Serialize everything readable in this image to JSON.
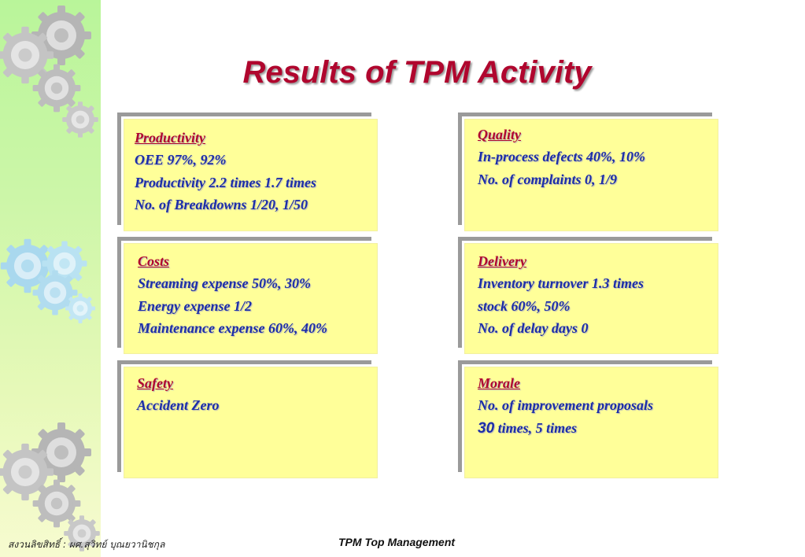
{
  "title": "Results of TPM Activity",
  "cards": {
    "productivity": {
      "heading": "Productivity",
      "lines": [
        "OEE 97%, 92%",
        "Productivity 2.2 times 1.7 times",
        "No. of Breakdowns 1/20, 1/50"
      ]
    },
    "quality": {
      "heading": "Quality",
      "lines": [
        "In-process defects 40%, 10%",
        "No. of complaints 0, 1/9"
      ]
    },
    "costs": {
      "heading": "Costs",
      "lines": [
        "Streaming expense 50%, 30%",
        "Energy expense 1/2",
        "Maintenance expense 60%, 40%"
      ]
    },
    "delivery": {
      "heading": "Delivery",
      "lines": [
        "Inventory turnover 1.3 times",
        "stock 60%, 50%",
        "No. of delay days 0"
      ]
    },
    "safety": {
      "heading": "Safety",
      "lines": [
        "Accident Zero"
      ]
    },
    "morale": {
      "heading": "Morale",
      "lines": [
        "No. of improvement proposals"
      ],
      "number": "30",
      "number_suffix": " times, 5 times"
    }
  },
  "footer": {
    "copyright": "สงวนลิขสิทธิ์ : ผศ.สุวิทย์ บุณยวานิชกุล",
    "center": "TPM Top Management"
  },
  "colors": {
    "title": "#b0062e",
    "heading": "#b0062e",
    "body_text": "#1c2ea8",
    "card_fill": "#ffff99",
    "sidebar_top": "#b9f59a",
    "sidebar_bottom": "#f7fbd0"
  },
  "icons": [
    "gear-icon"
  ]
}
